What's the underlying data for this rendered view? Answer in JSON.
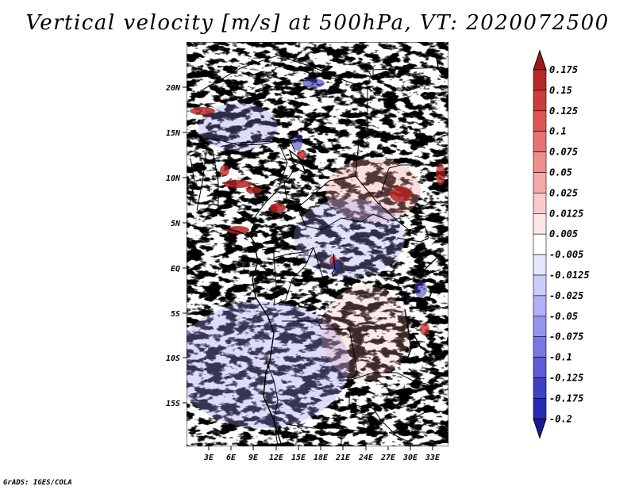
{
  "title": "Vertical velocity [m/s] at 500hPa, VT: 2020072500",
  "credit": "GrADS: IGES/COLA",
  "map": {
    "lon_range": [
      -0.5,
      34.5
    ],
    "lat_range": [
      -20.0,
      24.5
    ],
    "x_tick_labels": [
      "3E",
      "6E",
      "9E",
      "12E",
      "15E",
      "18E",
      "21E",
      "24E",
      "27E",
      "30E",
      "33E"
    ],
    "y_tick_labels": [
      "20N",
      "15N",
      "10N",
      "5N",
      "EQ",
      "5S",
      "10S",
      "15S"
    ],
    "field": "vertical velocity",
    "level": "500hPa",
    "units": "m/s"
  },
  "colorbar": {
    "labels": [
      "0.175",
      "0.15",
      "0.125",
      "0.1",
      "0.075",
      "0.05",
      "0.025",
      "0.0125",
      "0.005",
      "-0.005",
      "-0.0125",
      "-0.025",
      "-0.05",
      "-0.075",
      "-0.1",
      "-0.125",
      "-0.175",
      "-0.2"
    ],
    "colors": [
      "#a01818",
      "#b82828",
      "#cc3c3c",
      "#dc5656",
      "#e87272",
      "#f08e8e",
      "#f6abab",
      "#facaca",
      "#fde6e6",
      "#ffffff",
      "#e6e6fc",
      "#ccccfa",
      "#b0b0f6",
      "#9494ee",
      "#7878e4",
      "#5c5cd6",
      "#4040c4",
      "#2a2ab0",
      "#1a1a96"
    ],
    "top_cap_color": "#a01818",
    "bottom_cap_color": "#1a1a96"
  }
}
